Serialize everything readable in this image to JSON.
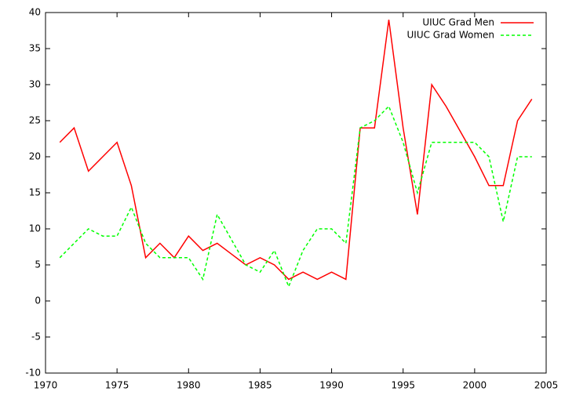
{
  "chart_data": {
    "type": "line",
    "x": [
      1971,
      1972,
      1973,
      1974,
      1975,
      1976,
      1977,
      1978,
      1979,
      1980,
      1981,
      1982,
      1983,
      1984,
      1985,
      1986,
      1987,
      1988,
      1989,
      1990,
      1991,
      1992,
      1993,
      1994,
      1995,
      1996,
      1997,
      1998,
      1999,
      2000,
      2001,
      2002,
      2003,
      2004
    ],
    "series": [
      {
        "name": "UIUC Grad Men",
        "color": "#ff0000",
        "dashed": false,
        "values": [
          22,
          24,
          18,
          20,
          22,
          16,
          6,
          8,
          6,
          9,
          7,
          8,
          6.5,
          5,
          6,
          5,
          3,
          4,
          3,
          4,
          3,
          24,
          24,
          39,
          24,
          12,
          30,
          27,
          23.5,
          20,
          16,
          16,
          25,
          28
        ]
      },
      {
        "name": "UIUC Grad Women",
        "color": "#00ff00",
        "dashed": true,
        "values": [
          6,
          8,
          10,
          9,
          9,
          13,
          8,
          6,
          6,
          6,
          3,
          12,
          8.5,
          5,
          4,
          7,
          2,
          7,
          10,
          10,
          8,
          24,
          25,
          27,
          22,
          15,
          22,
          22,
          22,
          22,
          20,
          11,
          20,
          20
        ]
      }
    ],
    "xlim": [
      1970,
      2005
    ],
    "xticks": [
      1970,
      1975,
      1980,
      1985,
      1990,
      1995,
      2000,
      2005
    ],
    "ylim": [
      -10,
      40
    ],
    "yticks": [
      -10,
      -5,
      0,
      5,
      10,
      15,
      20,
      25,
      30,
      35,
      40
    ],
    "grid": false,
    "legend": "top-right"
  }
}
